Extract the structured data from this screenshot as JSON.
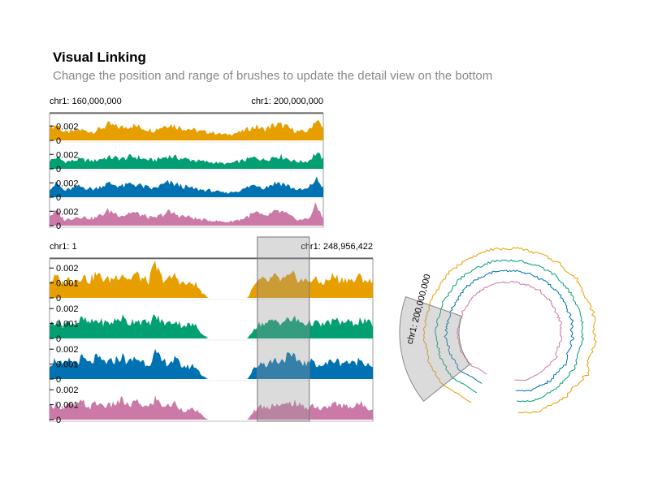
{
  "title": "Visual Linking",
  "subtitle": "Change the position and range of brushes to update the detail view on the bottom",
  "colors": {
    "track1": "#E79F00",
    "track2": "#029F73",
    "track3": "#0072B2",
    "track4": "#CB7AA7",
    "brush": "#999999"
  },
  "chart_data": [
    {
      "type": "area",
      "view": "detail",
      "chromosome": "chr1",
      "xlim": [
        160000000,
        200000000
      ],
      "x_labels": [
        "chr1: 160,000,000",
        "chr1: 200,000,000"
      ],
      "y_ticks": [
        [
          "0.002",
          "0"
        ],
        [
          "0.002",
          "0"
        ],
        [
          "0.002",
          "0"
        ],
        [
          "0.002",
          "0"
        ]
      ],
      "ylim": [
        0,
        0.0035
      ],
      "series": [
        {
          "values": [
            0.0018,
            0.0022,
            0.0011,
            0.0012,
            0.0015,
            0.0013,
            0.0012,
            0.0017,
            0.0022,
            0.0019,
            0.0018,
            0.0021,
            0.0019,
            0.0016,
            0.0014,
            0.0018,
            0.0023,
            0.002,
            0.0017,
            0.0016,
            0.0013,
            0.0012,
            0.0011,
            0.0009,
            0.0008,
            0.001,
            0.0012,
            0.0017,
            0.0019,
            0.0015,
            0.002,
            0.0022,
            0.0019,
            0.0014,
            0.0012,
            0.0013,
            0.003,
            0.0016
          ]
        },
        {
          "values": [
            0.0011,
            0.0016,
            0.001,
            0.0011,
            0.0013,
            0.0012,
            0.0011,
            0.0014,
            0.0016,
            0.0015,
            0.0014,
            0.0017,
            0.0016,
            0.0013,
            0.0012,
            0.0014,
            0.0018,
            0.0016,
            0.0014,
            0.0013,
            0.0011,
            0.001,
            0.0009,
            0.0008,
            0.0007,
            0.0009,
            0.0011,
            0.0014,
            0.0016,
            0.0012,
            0.0016,
            0.0018,
            0.0015,
            0.0011,
            0.001,
            0.0011,
            0.0022,
            0.0014
          ]
        },
        {
          "values": [
            0.0013,
            0.0019,
            0.0009,
            0.0012,
            0.0015,
            0.0013,
            0.0011,
            0.0016,
            0.0019,
            0.0017,
            0.0015,
            0.0019,
            0.0017,
            0.0014,
            0.0012,
            0.0016,
            0.002,
            0.0018,
            0.0015,
            0.0013,
            0.0011,
            0.001,
            0.0009,
            0.0007,
            0.0006,
            0.0008,
            0.001,
            0.0015,
            0.0018,
            0.0013,
            0.0018,
            0.0021,
            0.0017,
            0.0012,
            0.001,
            0.0012,
            0.0026,
            0.0014
          ]
        },
        {
          "values": [
            0.0014,
            0.002,
            0.0008,
            0.001,
            0.0013,
            0.0011,
            0.001,
            0.0015,
            0.0021,
            0.0017,
            0.0014,
            0.0019,
            0.0016,
            0.0013,
            0.001,
            0.0014,
            0.0019,
            0.0016,
            0.0013,
            0.0012,
            0.0009,
            0.0008,
            0.0007,
            0.0006,
            0.0005,
            0.0007,
            0.0009,
            0.0014,
            0.0018,
            0.0012,
            0.0017,
            0.002,
            0.0016,
            0.001,
            0.0008,
            0.001,
            0.0028,
            0.0012
          ]
        }
      ]
    },
    {
      "type": "area",
      "view": "overview",
      "chromosome": "chr1",
      "xlim": [
        1,
        248956422
      ],
      "x_labels": [
        "chr1: 1",
        "chr1: 248,956,422"
      ],
      "y_ticks": [
        [
          "0.002",
          "0.001",
          "0"
        ],
        [
          "0.002",
          "0.001",
          "0"
        ],
        [
          "0.002",
          "0.001",
          "0"
        ],
        [
          "0.002",
          "0.001",
          "0"
        ]
      ],
      "ylim": [
        0,
        0.0025
      ],
      "brush": [
        160000000,
        200000000
      ],
      "series": [
        {
          "values": [
            0.0011,
            0.0014,
            0.001,
            0.0013,
            0.0012,
            0.0015,
            0.0011,
            0.0016,
            0.0013,
            0.0012,
            0.0014,
            0.0017,
            0.0012,
            0.0016,
            0.0013,
            0.0011,
            0.0022,
            0.0013,
            0.0012,
            0.0015,
            0.001,
            0.0009,
            0.001,
            0.0004,
            0,
            0,
            0,
            0,
            0,
            0,
            0,
            0.0008,
            0.0012,
            0.0011,
            0.0014,
            0.0012,
            0.0013,
            0.0015,
            0.0012,
            0.0011,
            0.0013,
            0.001,
            0.0011,
            0.0015,
            0.0012,
            0.0013,
            0.0011,
            0.0014,
            0.0012,
            0.001
          ]
        },
        {
          "values": [
            0.0009,
            0.0012,
            0.0009,
            0.0011,
            0.001,
            0.0013,
            0.001,
            0.0012,
            0.0011,
            0.001,
            0.0012,
            0.0014,
            0.001,
            0.0013,
            0.0011,
            0.001,
            0.0015,
            0.0011,
            0.001,
            0.0012,
            0.0009,
            0.0009,
            0.0009,
            0.0004,
            0,
            0,
            0,
            0,
            0,
            0,
            0,
            0.0007,
            0.001,
            0.001,
            0.0012,
            0.0011,
            0.0012,
            0.0013,
            0.0011,
            0.001,
            0.0011,
            0.0009,
            0.001,
            0.0012,
            0.0011,
            0.0011,
            0.001,
            0.0012,
            0.0011,
            0.0009
          ]
        },
        {
          "values": [
            0.001,
            0.0013,
            0.0009,
            0.0012,
            0.0011,
            0.0014,
            0.001,
            0.0014,
            0.0012,
            0.0011,
            0.0013,
            0.0015,
            0.0011,
            0.0014,
            0.0012,
            0.001,
            0.0017,
            0.0012,
            0.0011,
            0.0013,
            0.0009,
            0.0008,
            0.0009,
            0.0003,
            0,
            0,
            0,
            0,
            0,
            0,
            0,
            0.0007,
            0.0011,
            0.001,
            0.0013,
            0.0012,
            0.0015,
            0.0014,
            0.0012,
            0.001,
            0.0012,
            0.0009,
            0.001,
            0.0013,
            0.0011,
            0.0012,
            0.001,
            0.0013,
            0.0011,
            0.0009
          ]
        },
        {
          "values": [
            0.0008,
            0.0011,
            0.0007,
            0.001,
            0.0009,
            0.0012,
            0.0008,
            0.0011,
            0.001,
            0.0009,
            0.0011,
            0.0013,
            0.0009,
            0.0012,
            0.001,
            0.0008,
            0.0014,
            0.001,
            0.0009,
            0.0011,
            0.0007,
            0.0006,
            0.0007,
            0.0003,
            0,
            0,
            0,
            0,
            0,
            0,
            0,
            0.0006,
            0.0009,
            0.0008,
            0.0011,
            0.0009,
            0.001,
            0.0012,
            0.0009,
            0.0008,
            0.001,
            0.0007,
            0.0008,
            0.0011,
            0.0009,
            0.001,
            0.0008,
            0.0011,
            0.0009,
            0.0007
          ]
        }
      ]
    },
    {
      "type": "line",
      "view": "circular",
      "chromosome": "chr1",
      "brush_label": "chr1: 200,000,000",
      "brush": [
        160000000,
        200000000
      ],
      "gap": [
        121000000,
        144000000
      ]
    }
  ]
}
